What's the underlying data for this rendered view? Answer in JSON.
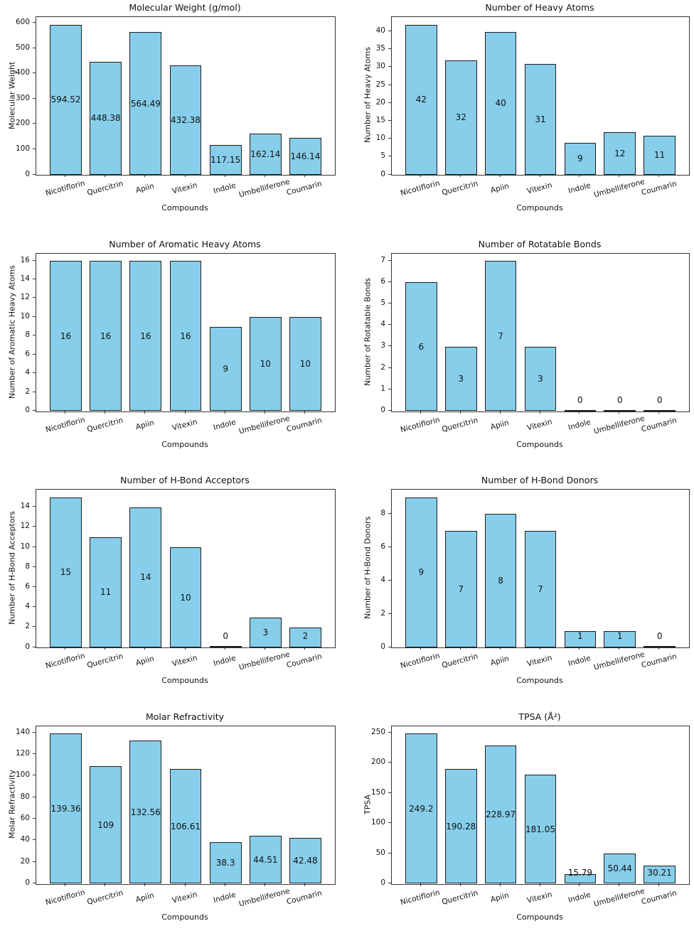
{
  "figure": {
    "background": "#ffffff",
    "bar_fill": "#87ceeb",
    "bar_edge": "#1d1d1d",
    "text_color": "#111111",
    "categories": [
      "Nicotiflorin",
      "Quercitrin",
      "Apiin",
      "Vitexin",
      "Indole",
      "Umbelliferone",
      "Coumarin"
    ],
    "xlabel": "Compounds",
    "layout": "4 rows x 2 columns of bar charts"
  },
  "chart_data": [
    {
      "type": "bar",
      "title": "Molecular Weight (g/mol)",
      "ylabel": "Molecular Weight",
      "xlabel": "Compounds",
      "categories": [
        "Nicotiflorin",
        "Quercitrin",
        "Apiin",
        "Vitexin",
        "Indole",
        "Umbelliferone",
        "Coumarin"
      ],
      "values": [
        594.52,
        448.38,
        564.49,
        432.38,
        117.15,
        162.14,
        146.14
      ],
      "value_labels": [
        "594.52",
        "448.38",
        "564.49",
        "432.38",
        "117.15",
        "162.14",
        "146.14"
      ],
      "yticks": [
        0,
        100,
        200,
        300,
        400,
        500,
        600
      ],
      "ylim": [
        0,
        624.25
      ],
      "grid": false,
      "legend": null
    },
    {
      "type": "bar",
      "title": "Number of Heavy Atoms",
      "ylabel": "Number of Heavy Atoms",
      "xlabel": "Compounds",
      "categories": [
        "Nicotiflorin",
        "Quercitrin",
        "Apiin",
        "Vitexin",
        "Indole",
        "Umbelliferone",
        "Coumarin"
      ],
      "values": [
        42,
        32,
        40,
        31,
        9,
        12,
        11
      ],
      "value_labels": [
        "42",
        "32",
        "40",
        "31",
        "9",
        "12",
        "11"
      ],
      "yticks": [
        0,
        5,
        10,
        15,
        20,
        25,
        30,
        35,
        40
      ],
      "ylim": [
        0,
        44.1
      ],
      "grid": false,
      "legend": null
    },
    {
      "type": "bar",
      "title": "Number of Aromatic Heavy Atoms",
      "ylabel": "Number of Aromatic Heavy Atoms",
      "xlabel": "Compounds",
      "categories": [
        "Nicotiflorin",
        "Quercitrin",
        "Apiin",
        "Vitexin",
        "Indole",
        "Umbelliferone",
        "Coumarin"
      ],
      "values": [
        16,
        16,
        16,
        16,
        9,
        10,
        10
      ],
      "value_labels": [
        "16",
        "16",
        "16",
        "16",
        "9",
        "10",
        "10"
      ],
      "yticks": [
        0,
        2,
        4,
        6,
        8,
        10,
        12,
        14,
        16
      ],
      "ylim": [
        0,
        16.8
      ],
      "grid": false,
      "legend": null
    },
    {
      "type": "bar",
      "title": "Number of Rotatable Bonds",
      "ylabel": "Number of Rotatable Bonds",
      "xlabel": "Compounds",
      "categories": [
        "Nicotiflorin",
        "Quercitrin",
        "Apiin",
        "Vitexin",
        "Indole",
        "Umbelliferone",
        "Coumarin"
      ],
      "values": [
        6,
        3,
        7,
        3,
        0,
        0,
        0
      ],
      "value_labels": [
        "6",
        "3",
        "7",
        "3",
        "0",
        "0",
        "0"
      ],
      "yticks": [
        0,
        1,
        2,
        3,
        4,
        5,
        6,
        7
      ],
      "ylim": [
        0,
        7.35
      ],
      "grid": false,
      "legend": null
    },
    {
      "type": "bar",
      "title": "Number of H-Bond Acceptors",
      "ylabel": "Number of H-Bond Acceptors",
      "xlabel": "Compounds",
      "categories": [
        "Nicotiflorin",
        "Quercitrin",
        "Apiin",
        "Vitexin",
        "Indole",
        "Umbelliferone",
        "Coumarin"
      ],
      "values": [
        15,
        11,
        14,
        10,
        0,
        3,
        2
      ],
      "value_labels": [
        "15",
        "11",
        "14",
        "10",
        "0",
        "3",
        "2"
      ],
      "yticks": [
        0,
        2,
        4,
        6,
        8,
        10,
        12,
        14
      ],
      "ylim": [
        0,
        15.75
      ],
      "grid": false,
      "legend": null
    },
    {
      "type": "bar",
      "title": "Number of H-Bond Donors",
      "ylabel": "Number of H-Bond Donors",
      "xlabel": "Compounds",
      "categories": [
        "Nicotiflorin",
        "Quercitrin",
        "Apiin",
        "Vitexin",
        "Indole",
        "Umbelliferone",
        "Coumarin"
      ],
      "values": [
        9,
        7,
        8,
        7,
        1,
        1,
        0
      ],
      "value_labels": [
        "9",
        "7",
        "8",
        "7",
        "1",
        "1",
        "0"
      ],
      "yticks": [
        0,
        2,
        4,
        6,
        8
      ],
      "ylim": [
        0,
        9.45
      ],
      "grid": false,
      "legend": null
    },
    {
      "type": "bar",
      "title": "Molar Refractivity",
      "ylabel": "Molar Refractivity",
      "xlabel": "Compounds",
      "categories": [
        "Nicotiflorin",
        "Quercitrin",
        "Apiin",
        "Vitexin",
        "Indole",
        "Umbelliferone",
        "Coumarin"
      ],
      "values": [
        139.36,
        109,
        132.56,
        106.61,
        38.3,
        44.51,
        42.48
      ],
      "value_labels": [
        "139.36",
        "109",
        "132.56",
        "106.61",
        "38.3",
        "44.51",
        "42.48"
      ],
      "yticks": [
        0,
        20,
        40,
        60,
        80,
        100,
        120,
        140
      ],
      "ylim": [
        0,
        146.33
      ],
      "grid": false,
      "legend": null
    },
    {
      "type": "bar",
      "title": "TPSA (Å²)",
      "ylabel": "TPSA",
      "xlabel": "Compounds",
      "categories": [
        "Nicotiflorin",
        "Quercitrin",
        "Apiin",
        "Vitexin",
        "Indole",
        "Umbelliferone",
        "Coumarin"
      ],
      "values": [
        249.2,
        190.28,
        228.97,
        181.05,
        15.79,
        50.44,
        30.21
      ],
      "value_labels": [
        "249.2",
        "190.28",
        "228.97",
        "181.05",
        "15.79",
        "50.44",
        "30.21"
      ],
      "yticks": [
        0,
        50,
        100,
        150,
        200,
        250
      ],
      "ylim": [
        0,
        261.66
      ],
      "grid": false,
      "legend": null
    }
  ]
}
